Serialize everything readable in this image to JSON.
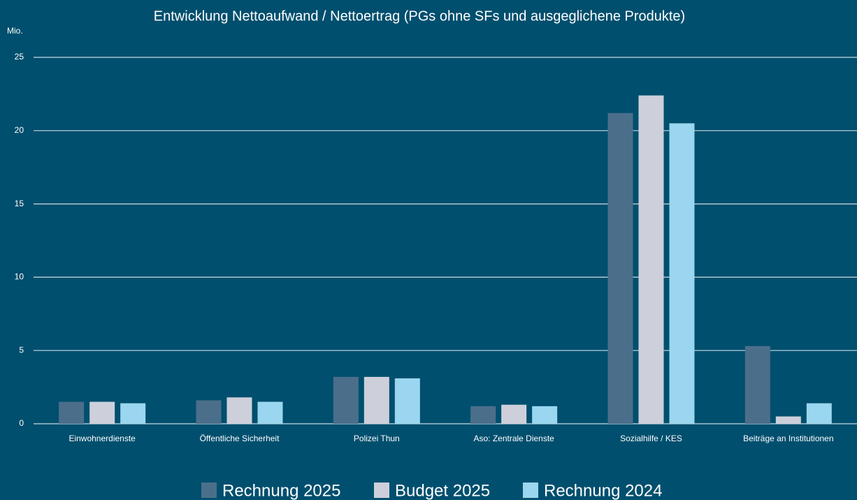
{
  "chart_data": {
    "type": "bar",
    "title": "Entwicklung Nettoaufwand / Nettoertrag (PGs ohne SFs und ausgeglichene Produkte)",
    "y_axis_label": "Mio.",
    "categories": [
      "Einwohnerdienste",
      "Öffentliche Sicherheit",
      "Polizei Thun",
      "Aso: Zentrale Dienste",
      "Sozialhilfe / KES",
      "Beiträge an Institutionen"
    ],
    "series": [
      {
        "name": "Rechnung 2025",
        "color": "#4b6f8b",
        "values": [
          1.5,
          1.6,
          3.2,
          1.2,
          21.2,
          5.3
        ]
      },
      {
        "name": "Budget 2025",
        "color": "#cdd0db",
        "values": [
          1.5,
          1.8,
          3.2,
          1.3,
          22.4,
          0.5
        ]
      },
      {
        "name": "Rechnung 2024",
        "color": "#9ad6ef",
        "values": [
          1.4,
          1.5,
          3.1,
          1.2,
          20.5,
          1.4
        ]
      }
    ],
    "ylim": [
      0,
      25
    ],
    "yticks": [
      0,
      5,
      10,
      15,
      20,
      25
    ],
    "grid": true,
    "legend": "bottom"
  }
}
